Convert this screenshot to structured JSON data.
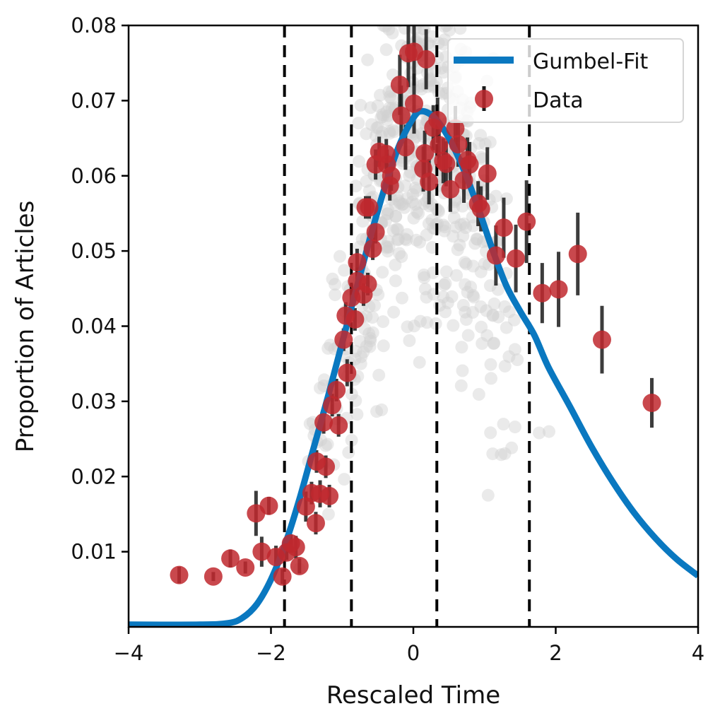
{
  "chart_data": {
    "type": "scatter",
    "title": "",
    "xlabel": "Rescaled Time",
    "ylabel": "Proportion of Articles",
    "xlim": [
      -4,
      4
    ],
    "ylim": [
      0,
      0.08
    ],
    "xticks": [
      -4,
      -2,
      0,
      2,
      4
    ],
    "xtick_labels": [
      "−4",
      "−2",
      "0",
      "2",
      "4"
    ],
    "yticks": [
      0.01,
      0.02,
      0.03,
      0.04,
      0.05,
      0.06,
      0.07,
      0.08
    ],
    "ytick_labels": [
      "0.01",
      "0.02",
      "0.03",
      "0.04",
      "0.05",
      "0.06",
      "0.07",
      "0.08"
    ],
    "grid": false,
    "legend": {
      "placement": "top-right",
      "entries": [
        {
          "label": "Gumbel-Fit",
          "kind": "line"
        },
        {
          "label": "Data",
          "kind": "errorbar-marker"
        }
      ]
    },
    "vertical_dashed_lines_x": [
      -1.81,
      -0.87,
      0.33,
      1.63
    ],
    "colors": {
      "fit": "#0a78c0",
      "data": "#c0282e",
      "errorbar": "#1a1a1a",
      "background_points": "#d0d0d0",
      "dashed_lines": "#000000"
    },
    "series": [
      {
        "name": "Gumbel-Fit",
        "kind": "line",
        "model": "gumbel",
        "peak": {
          "x": 0.12,
          "y": 0.0686
        },
        "points": [
          [
            -4.0,
            0.0003
          ],
          [
            -3.0,
            0.0003
          ],
          [
            -2.6,
            0.0005
          ],
          [
            -2.4,
            0.0012
          ],
          [
            -2.2,
            0.003
          ],
          [
            -2.0,
            0.0063
          ],
          [
            -1.8,
            0.011
          ],
          [
            -1.6,
            0.017
          ],
          [
            -1.4,
            0.0238
          ],
          [
            -1.2,
            0.0306
          ],
          [
            -1.0,
            0.0378
          ],
          [
            -0.8,
            0.045
          ],
          [
            -0.6,
            0.052
          ],
          [
            -0.4,
            0.0585
          ],
          [
            -0.2,
            0.064
          ],
          [
            0.0,
            0.0677
          ],
          [
            0.12,
            0.0686
          ],
          [
            0.3,
            0.0677
          ],
          [
            0.5,
            0.065
          ],
          [
            0.7,
            0.061
          ],
          [
            0.9,
            0.056
          ],
          [
            1.1,
            0.0505
          ],
          [
            1.3,
            0.0455
          ],
          [
            1.5,
            0.042
          ],
          [
            1.7,
            0.0388
          ],
          [
            1.9,
            0.0345
          ],
          [
            2.2,
            0.0293
          ],
          [
            2.5,
            0.024
          ],
          [
            2.8,
            0.0193
          ],
          [
            3.1,
            0.0152
          ],
          [
            3.4,
            0.0118
          ],
          [
            3.7,
            0.009
          ],
          [
            4.0,
            0.0068
          ]
        ]
      },
      {
        "name": "Data",
        "kind": "errorbar",
        "points": [
          {
            "x": -3.29,
            "y": 0.0069,
            "err": 0.0011
          },
          {
            "x": -2.81,
            "y": 0.0067,
            "err": 0.0006
          },
          {
            "x": -2.57,
            "y": 0.0091,
            "err": 0.0012
          },
          {
            "x": -2.36,
            "y": 0.0079,
            "err": 0.0008
          },
          {
            "x": -2.21,
            "y": 0.0151,
            "err": 0.003
          },
          {
            "x": -2.03,
            "y": 0.0161,
            "err": 0.0012
          },
          {
            "x": -2.13,
            "y": 0.01,
            "err": 0.002
          },
          {
            "x": -1.93,
            "y": 0.0093,
            "err": 0.0015
          },
          {
            "x": -1.78,
            "y": 0.0099,
            "err": 0.001
          },
          {
            "x": -1.84,
            "y": 0.0067,
            "err": 0.001
          },
          {
            "x": -1.65,
            "y": 0.0106,
            "err": 0.0015
          },
          {
            "x": -1.6,
            "y": 0.0081,
            "err": 0.001
          },
          {
            "x": -1.72,
            "y": 0.0111,
            "err": 0.0012
          },
          {
            "x": -1.51,
            "y": 0.016,
            "err": 0.002
          },
          {
            "x": -1.43,
            "y": 0.0178,
            "err": 0.0015
          },
          {
            "x": -1.37,
            "y": 0.0138,
            "err": 0.0015
          },
          {
            "x": -1.31,
            "y": 0.0177,
            "err": 0.0018
          },
          {
            "x": -1.36,
            "y": 0.022,
            "err": 0.0015
          },
          {
            "x": -1.23,
            "y": 0.0213,
            "err": 0.0015
          },
          {
            "x": -1.18,
            "y": 0.0174,
            "err": 0.0015
          },
          {
            "x": -1.26,
            "y": 0.0272,
            "err": 0.0015
          },
          {
            "x": -1.05,
            "y": 0.0268,
            "err": 0.0015
          },
          {
            "x": -1.14,
            "y": 0.0295,
            "err": 0.0015
          },
          {
            "x": -1.08,
            "y": 0.0315,
            "err": 0.0015
          },
          {
            "x": -0.93,
            "y": 0.0338,
            "err": 0.0018
          },
          {
            "x": -0.98,
            "y": 0.0382,
            "err": 0.0015
          },
          {
            "x": -0.95,
            "y": 0.0414,
            "err": 0.0018
          },
          {
            "x": -0.82,
            "y": 0.0409,
            "err": 0.0015
          },
          {
            "x": -0.87,
            "y": 0.0438,
            "err": 0.0018
          },
          {
            "x": -0.7,
            "y": 0.0442,
            "err": 0.0015
          },
          {
            "x": -0.79,
            "y": 0.046,
            "err": 0.0018
          },
          {
            "x": -0.64,
            "y": 0.0456,
            "err": 0.0015
          },
          {
            "x": -0.79,
            "y": 0.0485,
            "err": 0.0018
          },
          {
            "x": -0.57,
            "y": 0.0503,
            "err": 0.0015
          },
          {
            "x": -0.53,
            "y": 0.0525,
            "err": 0.0015
          },
          {
            "x": -0.67,
            "y": 0.0558,
            "err": 0.0015
          },
          {
            "x": -0.62,
            "y": 0.0558,
            "err": 0.0015
          },
          {
            "x": -0.53,
            "y": 0.0615,
            "err": 0.002
          },
          {
            "x": -0.33,
            "y": 0.0587,
            "err": 0.002
          },
          {
            "x": -0.48,
            "y": 0.0632,
            "err": 0.002
          },
          {
            "x": -0.38,
            "y": 0.0629,
            "err": 0.002
          },
          {
            "x": -0.31,
            "y": 0.06,
            "err": 0.002
          },
          {
            "x": -0.37,
            "y": 0.0615,
            "err": 0.002
          },
          {
            "x": -0.19,
            "y": 0.0721,
            "err": 0.004
          },
          {
            "x": -0.11,
            "y": 0.0638,
            "err": 0.003
          },
          {
            "x": -0.17,
            "y": 0.068,
            "err": 0.004
          },
          {
            "x": -0.07,
            "y": 0.0763,
            "err": 0.0045
          },
          {
            "x": 0.01,
            "y": 0.0765,
            "err": 0.0045
          },
          {
            "x": 0.01,
            "y": 0.0696,
            "err": 0.004
          },
          {
            "x": 0.18,
            "y": 0.0755,
            "err": 0.004
          },
          {
            "x": 0.14,
            "y": 0.0609,
            "err": 0.003
          },
          {
            "x": 0.16,
            "y": 0.063,
            "err": 0.003
          },
          {
            "x": 0.22,
            "y": 0.0592,
            "err": 0.003
          },
          {
            "x": 0.28,
            "y": 0.0664,
            "err": 0.003
          },
          {
            "x": 0.34,
            "y": 0.0674,
            "err": 0.003
          },
          {
            "x": 0.36,
            "y": 0.0641,
            "err": 0.003
          },
          {
            "x": 0.42,
            "y": 0.062,
            "err": 0.003
          },
          {
            "x": 0.46,
            "y": 0.0616,
            "err": 0.003
          },
          {
            "x": 0.52,
            "y": 0.0582,
            "err": 0.003
          },
          {
            "x": 0.59,
            "y": 0.0663,
            "err": 0.003
          },
          {
            "x": 0.63,
            "y": 0.0642,
            "err": 0.003
          },
          {
            "x": 0.71,
            "y": 0.0594,
            "err": 0.003
          },
          {
            "x": 0.76,
            "y": 0.0621,
            "err": 0.003
          },
          {
            "x": 0.79,
            "y": 0.0615,
            "err": 0.003
          },
          {
            "x": 0.91,
            "y": 0.0563,
            "err": 0.003
          },
          {
            "x": 1.04,
            "y": 0.0603,
            "err": 0.0035
          },
          {
            "x": 0.95,
            "y": 0.0556,
            "err": 0.003
          },
          {
            "x": 1.16,
            "y": 0.0494,
            "err": 0.004
          },
          {
            "x": 1.27,
            "y": 0.0531,
            "err": 0.004
          },
          {
            "x": 1.44,
            "y": 0.049,
            "err": 0.0045
          },
          {
            "x": 1.59,
            "y": 0.0539,
            "err": 0.0055
          },
          {
            "x": 1.81,
            "y": 0.0444,
            "err": 0.004
          },
          {
            "x": 2.04,
            "y": 0.0449,
            "err": 0.005
          },
          {
            "x": 2.31,
            "y": 0.0496,
            "err": 0.0055
          },
          {
            "x": 2.65,
            "y": 0.0382,
            "err": 0.0045
          },
          {
            "x": 3.35,
            "y": 0.0298,
            "err": 0.0033
          }
        ]
      },
      {
        "name": "background-scatter",
        "kind": "scatter",
        "count_approx": 600,
        "distribution": "dense between x=-2.5 and x=2.5, following the fit envelope with wide spread",
        "color": "#d0d0d0"
      }
    ]
  }
}
